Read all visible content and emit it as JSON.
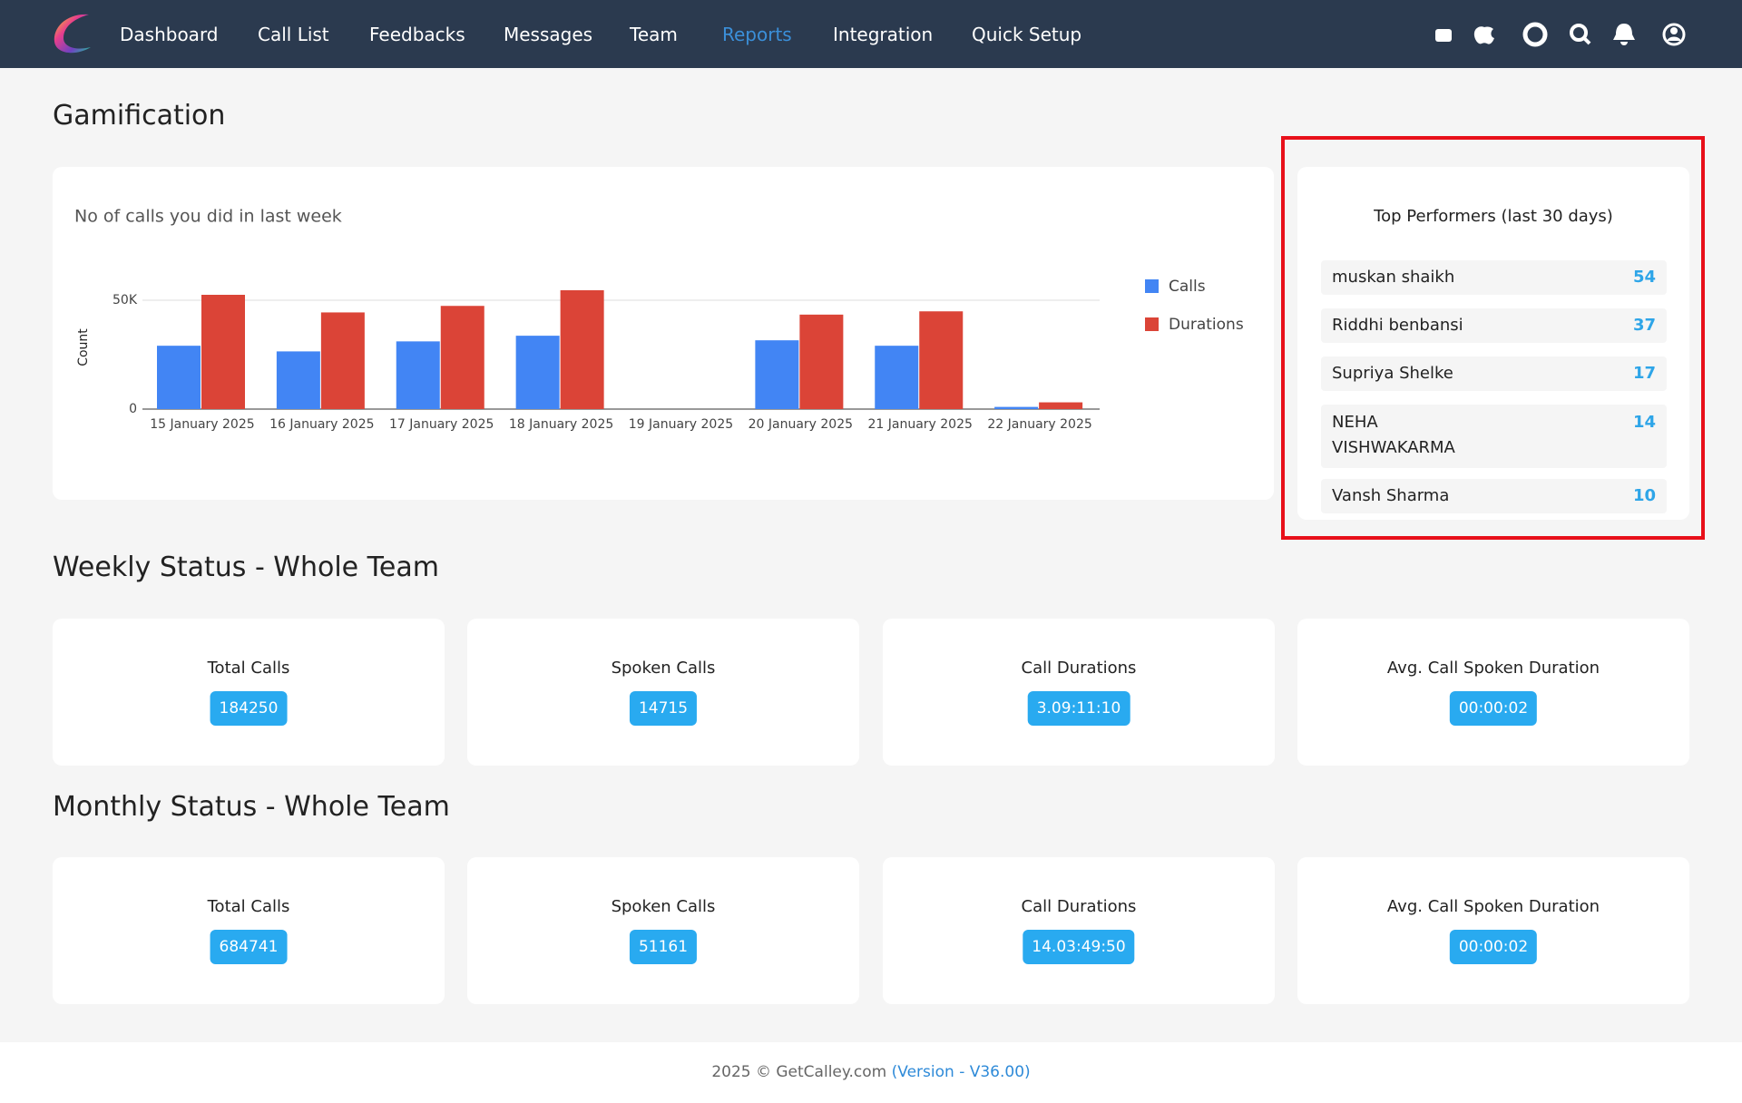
{
  "nav": {
    "items": [
      "Dashboard",
      "Call List",
      "Feedbacks",
      "Messages",
      "Team",
      "Reports",
      "Integration",
      "Quick Setup"
    ],
    "active": 5
  },
  "page_title": "Gamification",
  "chart_data": {
    "type": "bar",
    "title": "No of calls you did in last week",
    "y_label": "Count",
    "categories": [
      "15 January 2025",
      "16 January 2025",
      "17 January 2025",
      "18 January 2025",
      "19 January 2025",
      "20 January 2025",
      "21 January 2025",
      "22 January 2025"
    ],
    "series": [
      {
        "name": "Calls",
        "color": "#4285f4",
        "values": [
          29100,
          26500,
          31100,
          33700,
          0,
          31600,
          29100,
          1000
        ]
      },
      {
        "name": "Durations",
        "color": "#db4437",
        "values": [
          52500,
          44400,
          47400,
          54600,
          0,
          43400,
          44900,
          3100
        ]
      }
    ],
    "ylim": [
      0,
      60000
    ],
    "yticks": [
      0,
      {
        "value": 50000,
        "label": "50K"
      }
    ],
    "grid": true,
    "legend": "right"
  },
  "top_performers": {
    "title": "Top Performers (last 30 days)",
    "rows": [
      {
        "name": "muskan shaikh",
        "value": 54
      },
      {
        "name": "Riddhi benbansi",
        "value": 37
      },
      {
        "name": "Supriya Shelke",
        "value": 17
      },
      {
        "name": "NEHA VISHWAKARMA",
        "value": 14
      },
      {
        "name": "Vansh Sharma",
        "value": 10
      }
    ]
  },
  "weekly": {
    "title": "Weekly Status - Whole Team",
    "cards": [
      {
        "label": "Total Calls",
        "value": 184250
      },
      {
        "label": "Spoken Calls",
        "value": 14715
      },
      {
        "label": "Call Durations",
        "value": "3.09:11:10"
      },
      {
        "label": "Avg. Call Spoken Duration",
        "value": "00:00:02"
      }
    ]
  },
  "monthly": {
    "title": "Monthly Status - Whole Team",
    "cards": [
      {
        "label": "Total Calls",
        "value": 684741
      },
      {
        "label": "Spoken Calls",
        "value": 51161
      },
      {
        "label": "Call Durations",
        "value": "14.03:49:50"
      },
      {
        "label": "Avg. Call Spoken Duration",
        "value": "00:00:02"
      }
    ]
  },
  "footer": {
    "text": "2025 © GetCalley.com",
    "version": "(Version - V36.00)"
  }
}
